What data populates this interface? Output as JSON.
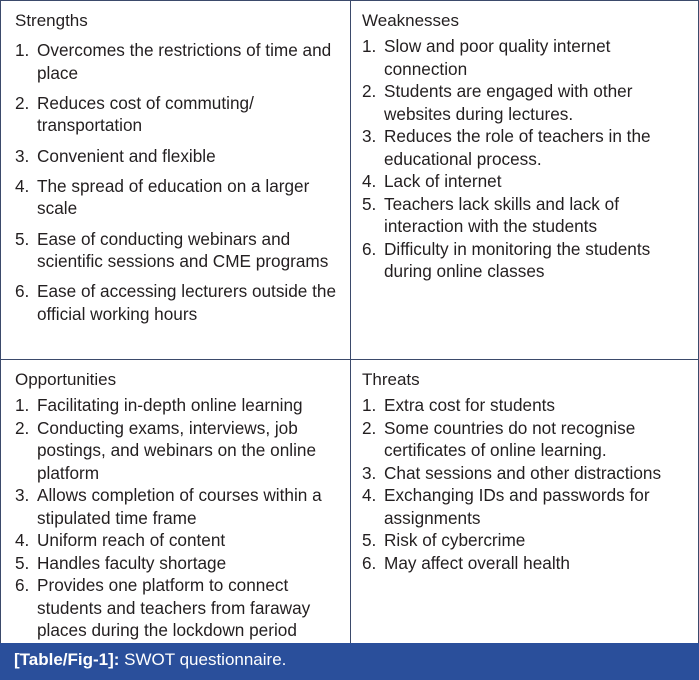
{
  "strengths": {
    "title": "Strengths",
    "items": [
      "Overcomes the restrictions of time and place",
      "Reduces cost of commuting/ transportation",
      "Convenient and flexible",
      "The spread of education on a larger scale",
      "Ease of conducting webinars and scientific sessions and CME programs",
      "Ease of accessing lecturers outside the official working hours"
    ]
  },
  "weaknesses": {
    "title": "Weaknesses",
    "items": [
      "Slow and poor quality internet connection",
      "Students are engaged with other websites during lectures.",
      "Reduces the role of teachers in the educational process.",
      "Lack of internet",
      "Teachers lack skills and lack of interaction with the students",
      "Difficulty in monitoring the students during online classes"
    ]
  },
  "opportunities": {
    "title": "Opportunities",
    "items": [
      "Facilitating in-depth online learning",
      "Conducting exams, interviews, job postings, and webinars on the online platform",
      "Allows completion of courses within a stipulated time frame",
      "Uniform reach of content",
      "Handles faculty shortage",
      "Provides one platform to connect students and teachers from faraway places during the lockdown period"
    ]
  },
  "threats": {
    "title": "Threats",
    "items": [
      "Extra cost for students",
      "Some countries do not recognise certificates of online learning.",
      "Chat sessions and other distractions",
      "Exchanging IDs and passwords for assignments",
      "Risk of cybercrime",
      "May affect overall health"
    ]
  },
  "caption": {
    "label": "[Table/Fig-1]:",
    "text": " SWOT questionnaire."
  },
  "colors": {
    "caption_bg": "#2a4f9b",
    "border": "#3b4a6b"
  }
}
